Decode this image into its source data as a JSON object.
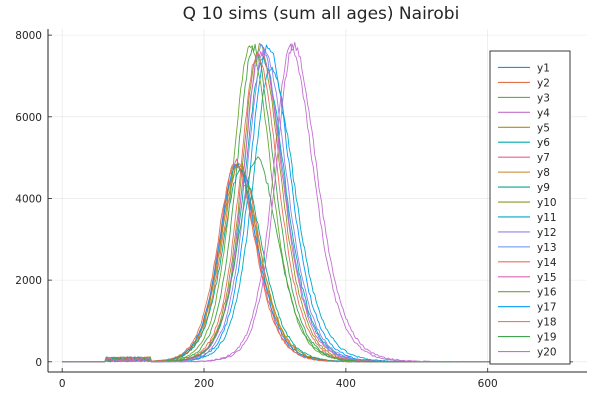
{
  "chart_data": {
    "type": "line",
    "title": "Q 10 sims (sum all ages) Nairobi",
    "xlabel": "",
    "ylabel": "",
    "xlim": [
      -20,
      740
    ],
    "ylim": [
      -250,
      8150
    ],
    "x_ticks": [
      0,
      200,
      400,
      600
    ],
    "y_ticks": [
      0,
      2000,
      4000,
      6000,
      8000
    ],
    "grid": true,
    "legend_position": "top-right",
    "x_start": 0,
    "x_end": 720,
    "series": [
      {
        "name": "y1",
        "color": "#009AFA",
        "peak": 7750,
        "peak_x": 290,
        "rise": 34,
        "fall": 42
      },
      {
        "name": "y2",
        "color": "#E36F47",
        "peak": 4850,
        "peak_x": 250,
        "rise": 33,
        "fall": 38
      },
      {
        "name": "y3",
        "color": "#3EA44E",
        "peak": 7700,
        "peak_x": 270,
        "rise": 33,
        "fall": 40
      },
      {
        "name": "y4",
        "color": "#C371D2",
        "peak": 7700,
        "peak_x": 322,
        "rise": 33,
        "fall": 44
      },
      {
        "name": "y5",
        "color": "#AC8E18",
        "peak": 4800,
        "peak_x": 248,
        "rise": 33,
        "fall": 40
      },
      {
        "name": "y6",
        "color": "#00A9AD",
        "peak": 7400,
        "peak_x": 283,
        "rise": 35,
        "fall": 42
      },
      {
        "name": "y7",
        "color": "#ED5E93",
        "peak": 4900,
        "peak_x": 245,
        "rise": 32,
        "fall": 38
      },
      {
        "name": "y8",
        "color": "#C68225",
        "peak": 4800,
        "peak_x": 247,
        "rise": 33,
        "fall": 39
      },
      {
        "name": "y9",
        "color": "#00A98D",
        "peak": 4700,
        "peak_x": 252,
        "rise": 34,
        "fall": 40
      },
      {
        "name": "y10",
        "color": "#8E971E",
        "peak": 7700,
        "peak_x": 278,
        "rise": 33,
        "fall": 40
      },
      {
        "name": "y11",
        "color": "#00A8CB",
        "peak": 7200,
        "peak_x": 294,
        "rise": 34,
        "fall": 45
      },
      {
        "name": "y12",
        "color": "#9B7FE9",
        "peak": 7650,
        "peak_x": 285,
        "rise": 33,
        "fall": 42
      },
      {
        "name": "y13",
        "color": "#618DF6",
        "peak": 7700,
        "peak_x": 280,
        "rise": 33,
        "fall": 42
      },
      {
        "name": "y14",
        "color": "#F16C5E",
        "peak": 7500,
        "peak_x": 275,
        "rise": 33,
        "fall": 40
      },
      {
        "name": "y15",
        "color": "#DD64B5",
        "peak": 7600,
        "peak_x": 280,
        "rise": 33,
        "fall": 41
      },
      {
        "name": "y16",
        "color": "#6CA832",
        "peak": 7750,
        "peak_x": 265,
        "rise": 33,
        "fall": 40
      },
      {
        "name": "y17",
        "color": "#009AFA",
        "peak": 4800,
        "peak_x": 246,
        "rise": 33,
        "fall": 39
      },
      {
        "name": "y18",
        "color": "#E36F47",
        "peak": 4850,
        "peak_x": 244,
        "rise": 33,
        "fall": 38
      },
      {
        "name": "y19",
        "color": "#3EA44E",
        "peak": 5000,
        "peak_x": 274,
        "rise": 34,
        "fall": 41
      },
      {
        "name": "y20",
        "color": "#C371D2",
        "peak": 7750,
        "peak_x": 326,
        "rise": 33,
        "fall": 45
      }
    ]
  }
}
